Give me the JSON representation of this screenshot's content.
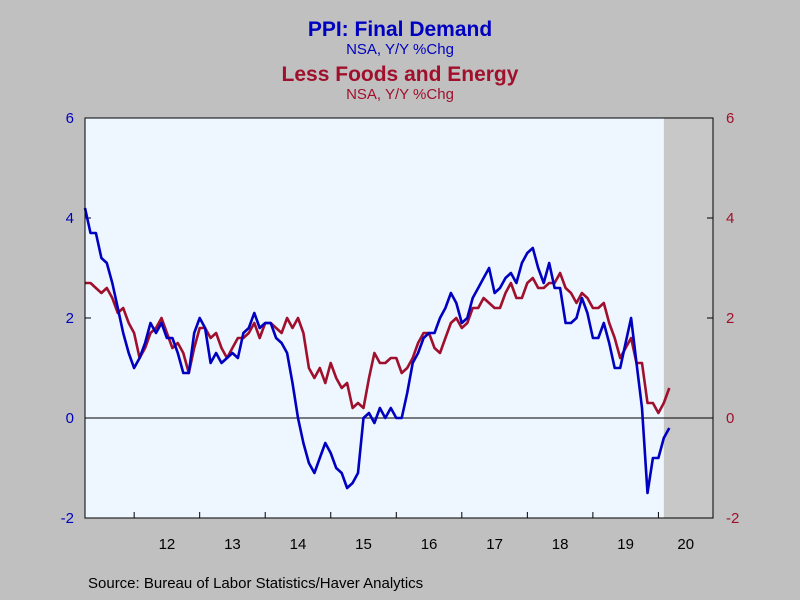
{
  "colors": {
    "background": "#c0c0c0",
    "plot_bg": "#eef6ff",
    "recession_shade": "#c8c8c8",
    "series1": "#0000c0",
    "series2": "#a0102c"
  },
  "chart_data": {
    "type": "line",
    "title": "PPI: Final Demand",
    "subtitle": "NSA, Y/Y %Chg",
    "title2": "Less Foods and Energy",
    "subtitle2": "NSA, Y/Y %Chg",
    "source": "Source:  Bureau of Labor Statistics/Haver Analytics",
    "x_start": 2011.25,
    "x_end": 2020.833,
    "x_tick_positions": [
      2012,
      2013,
      2014,
      2015,
      2016,
      2017,
      2018,
      2019,
      2020
    ],
    "x_tick_labels": [
      "12",
      "13",
      "14",
      "15",
      "16",
      "17",
      "18",
      "19",
      "20"
    ],
    "y_left": {
      "min": -2,
      "max": 6,
      "ticks": [
        -2,
        0,
        2,
        4,
        6
      ]
    },
    "y_right": {
      "min": -2,
      "max": 6,
      "ticks": [
        -2,
        0,
        2,
        4,
        6
      ]
    },
    "recession_shade": [
      2020.083,
      2020.833
    ],
    "zero_line": true,
    "series": [
      {
        "name": "PPI: Final Demand",
        "axis": "left",
        "start": 2011.25,
        "step": 0.08333,
        "values": [
          4.2,
          3.7,
          3.7,
          3.2,
          3.1,
          2.7,
          2.2,
          1.7,
          1.3,
          1.0,
          1.2,
          1.5,
          1.9,
          1.7,
          1.9,
          1.6,
          1.6,
          1.3,
          0.9,
          0.9,
          1.7,
          2.0,
          1.8,
          1.1,
          1.3,
          1.1,
          1.2,
          1.3,
          1.2,
          1.7,
          1.8,
          2.1,
          1.8,
          1.9,
          1.9,
          1.6,
          1.5,
          1.3,
          0.7,
          0.0,
          -0.5,
          -0.9,
          -1.1,
          -0.8,
          -0.5,
          -0.7,
          -1.0,
          -1.1,
          -1.4,
          -1.3,
          -1.1,
          0.0,
          0.1,
          -0.1,
          0.2,
          0.0,
          0.2,
          0.0,
          0.0,
          0.5,
          1.1,
          1.3,
          1.6,
          1.7,
          1.7,
          2.0,
          2.2,
          2.5,
          2.3,
          1.9,
          2.0,
          2.4,
          2.6,
          2.8,
          3.0,
          2.5,
          2.6,
          2.8,
          2.9,
          2.7,
          3.1,
          3.3,
          3.4,
          3.0,
          2.7,
          3.1,
          2.6,
          2.6,
          1.9,
          1.9,
          2.0,
          2.4,
          2.1,
          1.6,
          1.6,
          1.9,
          1.5,
          1.0,
          1.0,
          1.5,
          2.0,
          1.1,
          0.2,
          -1.5,
          -0.8,
          -0.8,
          -0.4,
          -0.2
        ]
      },
      {
        "name": "Less Foods and Energy",
        "axis": "right",
        "start": 2011.25,
        "step": 0.08333,
        "values": [
          2.7,
          2.7,
          2.6,
          2.5,
          2.6,
          2.4,
          2.1,
          2.2,
          1.9,
          1.7,
          1.2,
          1.4,
          1.7,
          1.8,
          2.0,
          1.7,
          1.4,
          1.5,
          1.3,
          0.9,
          1.4,
          1.8,
          1.8,
          1.6,
          1.7,
          1.4,
          1.2,
          1.4,
          1.6,
          1.6,
          1.7,
          1.9,
          1.6,
          1.9,
          1.9,
          1.8,
          1.7,
          2.0,
          1.8,
          2.0,
          1.7,
          1.0,
          0.8,
          1.0,
          0.7,
          1.1,
          0.8,
          0.6,
          0.7,
          0.2,
          0.3,
          0.2,
          0.8,
          1.3,
          1.1,
          1.1,
          1.2,
          1.2,
          0.9,
          1.0,
          1.2,
          1.5,
          1.7,
          1.7,
          1.4,
          1.3,
          1.6,
          1.9,
          2.0,
          1.8,
          1.9,
          2.2,
          2.2,
          2.4,
          2.3,
          2.2,
          2.2,
          2.5,
          2.7,
          2.4,
          2.4,
          2.7,
          2.8,
          2.6,
          2.6,
          2.7,
          2.7,
          2.9,
          2.6,
          2.5,
          2.3,
          2.5,
          2.4,
          2.2,
          2.2,
          2.3,
          1.9,
          1.6,
          1.2,
          1.4,
          1.6,
          1.1,
          1.1,
          0.3,
          0.3,
          0.1,
          0.3,
          0.6
        ]
      }
    ]
  }
}
